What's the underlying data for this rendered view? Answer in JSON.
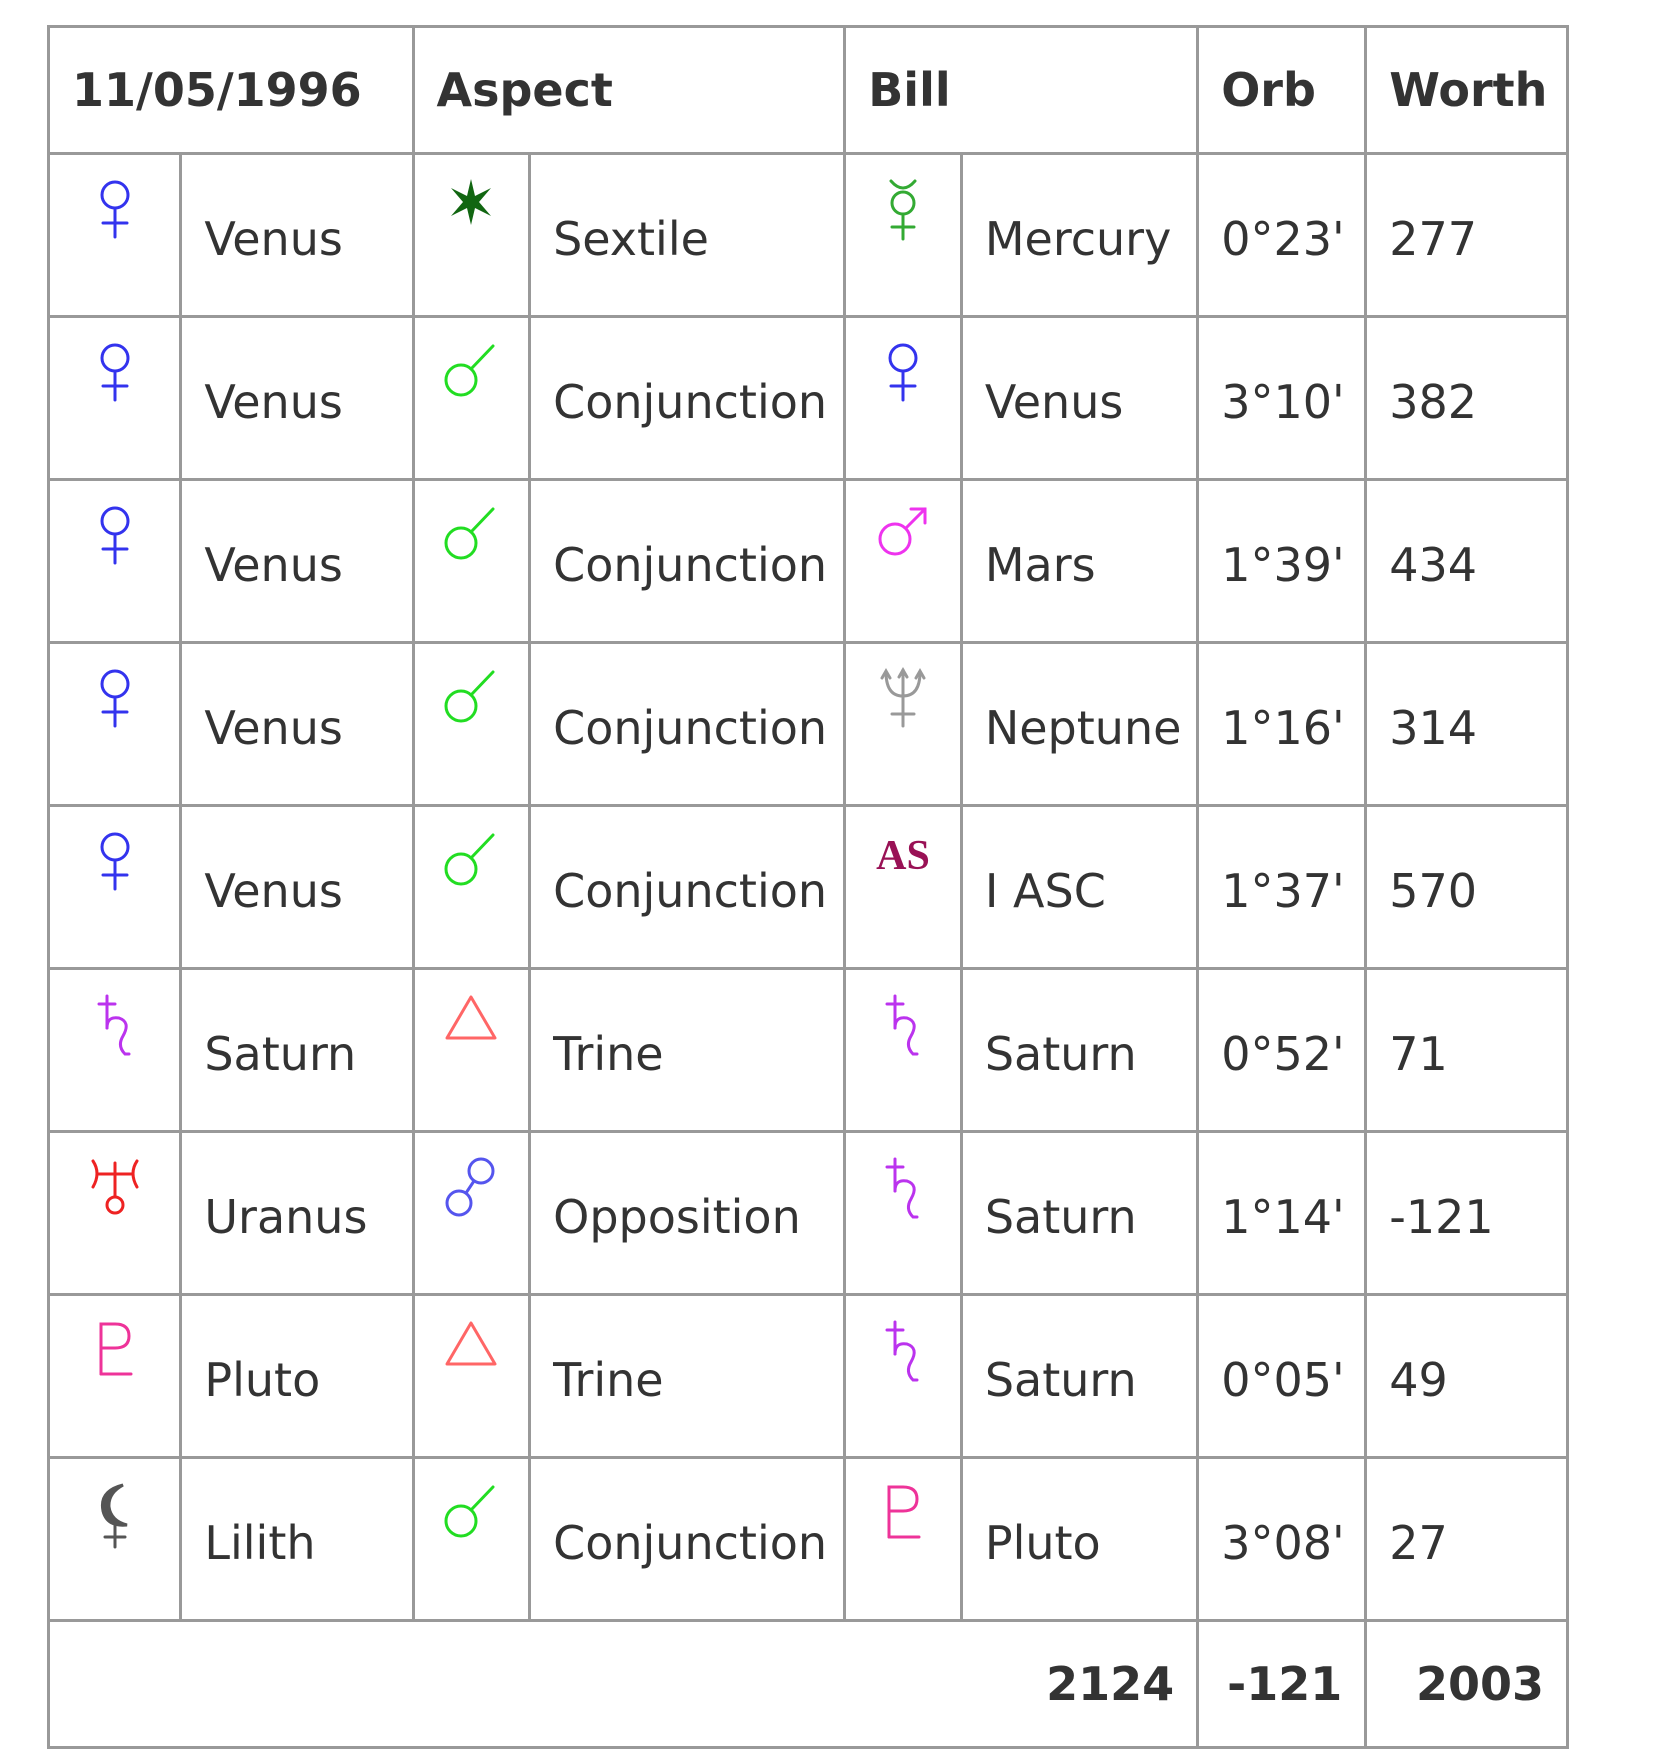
{
  "header": {
    "date": "11/05/1996",
    "aspect": "Aspect",
    "person": "Bill",
    "orb": "Orb",
    "worth": "Worth"
  },
  "rows": [
    {
      "planet1": "Venus",
      "planet1_icon": "venus-icon",
      "aspect": "Sextile",
      "aspect_icon": "sextile-icon",
      "planet2": "Mercury",
      "planet2_icon": "mercury-icon",
      "orb": "0°23'",
      "worth": "277"
    },
    {
      "planet1": "Venus",
      "planet1_icon": "venus-icon",
      "aspect": "Conjunction",
      "aspect_icon": "conjunction-icon",
      "planet2": "Venus",
      "planet2_icon": "venus-icon",
      "orb": "3°10'",
      "worth": "382"
    },
    {
      "planet1": "Venus",
      "planet1_icon": "venus-icon",
      "aspect": "Conjunction",
      "aspect_icon": "conjunction-icon",
      "planet2": "Mars",
      "planet2_icon": "mars-icon",
      "orb": "1°39'",
      "worth": "434"
    },
    {
      "planet1": "Venus",
      "planet1_icon": "venus-icon",
      "aspect": "Conjunction",
      "aspect_icon": "conjunction-icon",
      "planet2": "Neptune",
      "planet2_icon": "neptune-icon",
      "orb": "1°16'",
      "worth": "314"
    },
    {
      "planet1": "Venus",
      "planet1_icon": "venus-icon",
      "aspect": "Conjunction",
      "aspect_icon": "conjunction-icon",
      "planet2": "I ASC",
      "planet2_icon": "ascendant-icon",
      "planet2_icon_text": "AS",
      "orb": "1°37'",
      "worth": "570"
    },
    {
      "planet1": "Saturn",
      "planet1_icon": "saturn-icon",
      "aspect": "Trine",
      "aspect_icon": "trine-icon",
      "planet2": "Saturn",
      "planet2_icon": "saturn-icon",
      "orb": "0°52'",
      "worth": "71"
    },
    {
      "planet1": "Uranus",
      "planet1_icon": "uranus-icon",
      "aspect": "Opposition",
      "aspect_icon": "opposition-icon",
      "planet2": "Saturn",
      "planet2_icon": "saturn-icon",
      "orb": "1°14'",
      "worth": "-121"
    },
    {
      "planet1": "Pluto",
      "planet1_icon": "pluto-icon",
      "aspect": "Trine",
      "aspect_icon": "trine-icon",
      "planet2": "Saturn",
      "planet2_icon": "saturn-icon",
      "orb": "0°05'",
      "worth": "49"
    },
    {
      "planet1": "Lilith",
      "planet1_icon": "lilith-icon",
      "aspect": "Conjunction",
      "aspect_icon": "conjunction-icon",
      "planet2": "Pluto",
      "planet2_icon": "pluto-icon",
      "orb": "3°08'",
      "worth": "27"
    }
  ],
  "totals": {
    "positive": "2124",
    "negative": "-121",
    "net": "2003"
  },
  "colors": {
    "venus": "#3333ee",
    "mercury": "#33aa33",
    "mars": "#ee33ee",
    "neptune": "#999999",
    "ascendant": "#991155",
    "saturn": "#bb33ee",
    "uranus": "#ee2222",
    "pluto": "#ee3399",
    "lilith": "#555555",
    "sextile": "#116611",
    "conjunction": "#22dd22",
    "trine": "#ff6666",
    "opposition": "#5555ee",
    "border": "#999999",
    "text": "#333333"
  }
}
